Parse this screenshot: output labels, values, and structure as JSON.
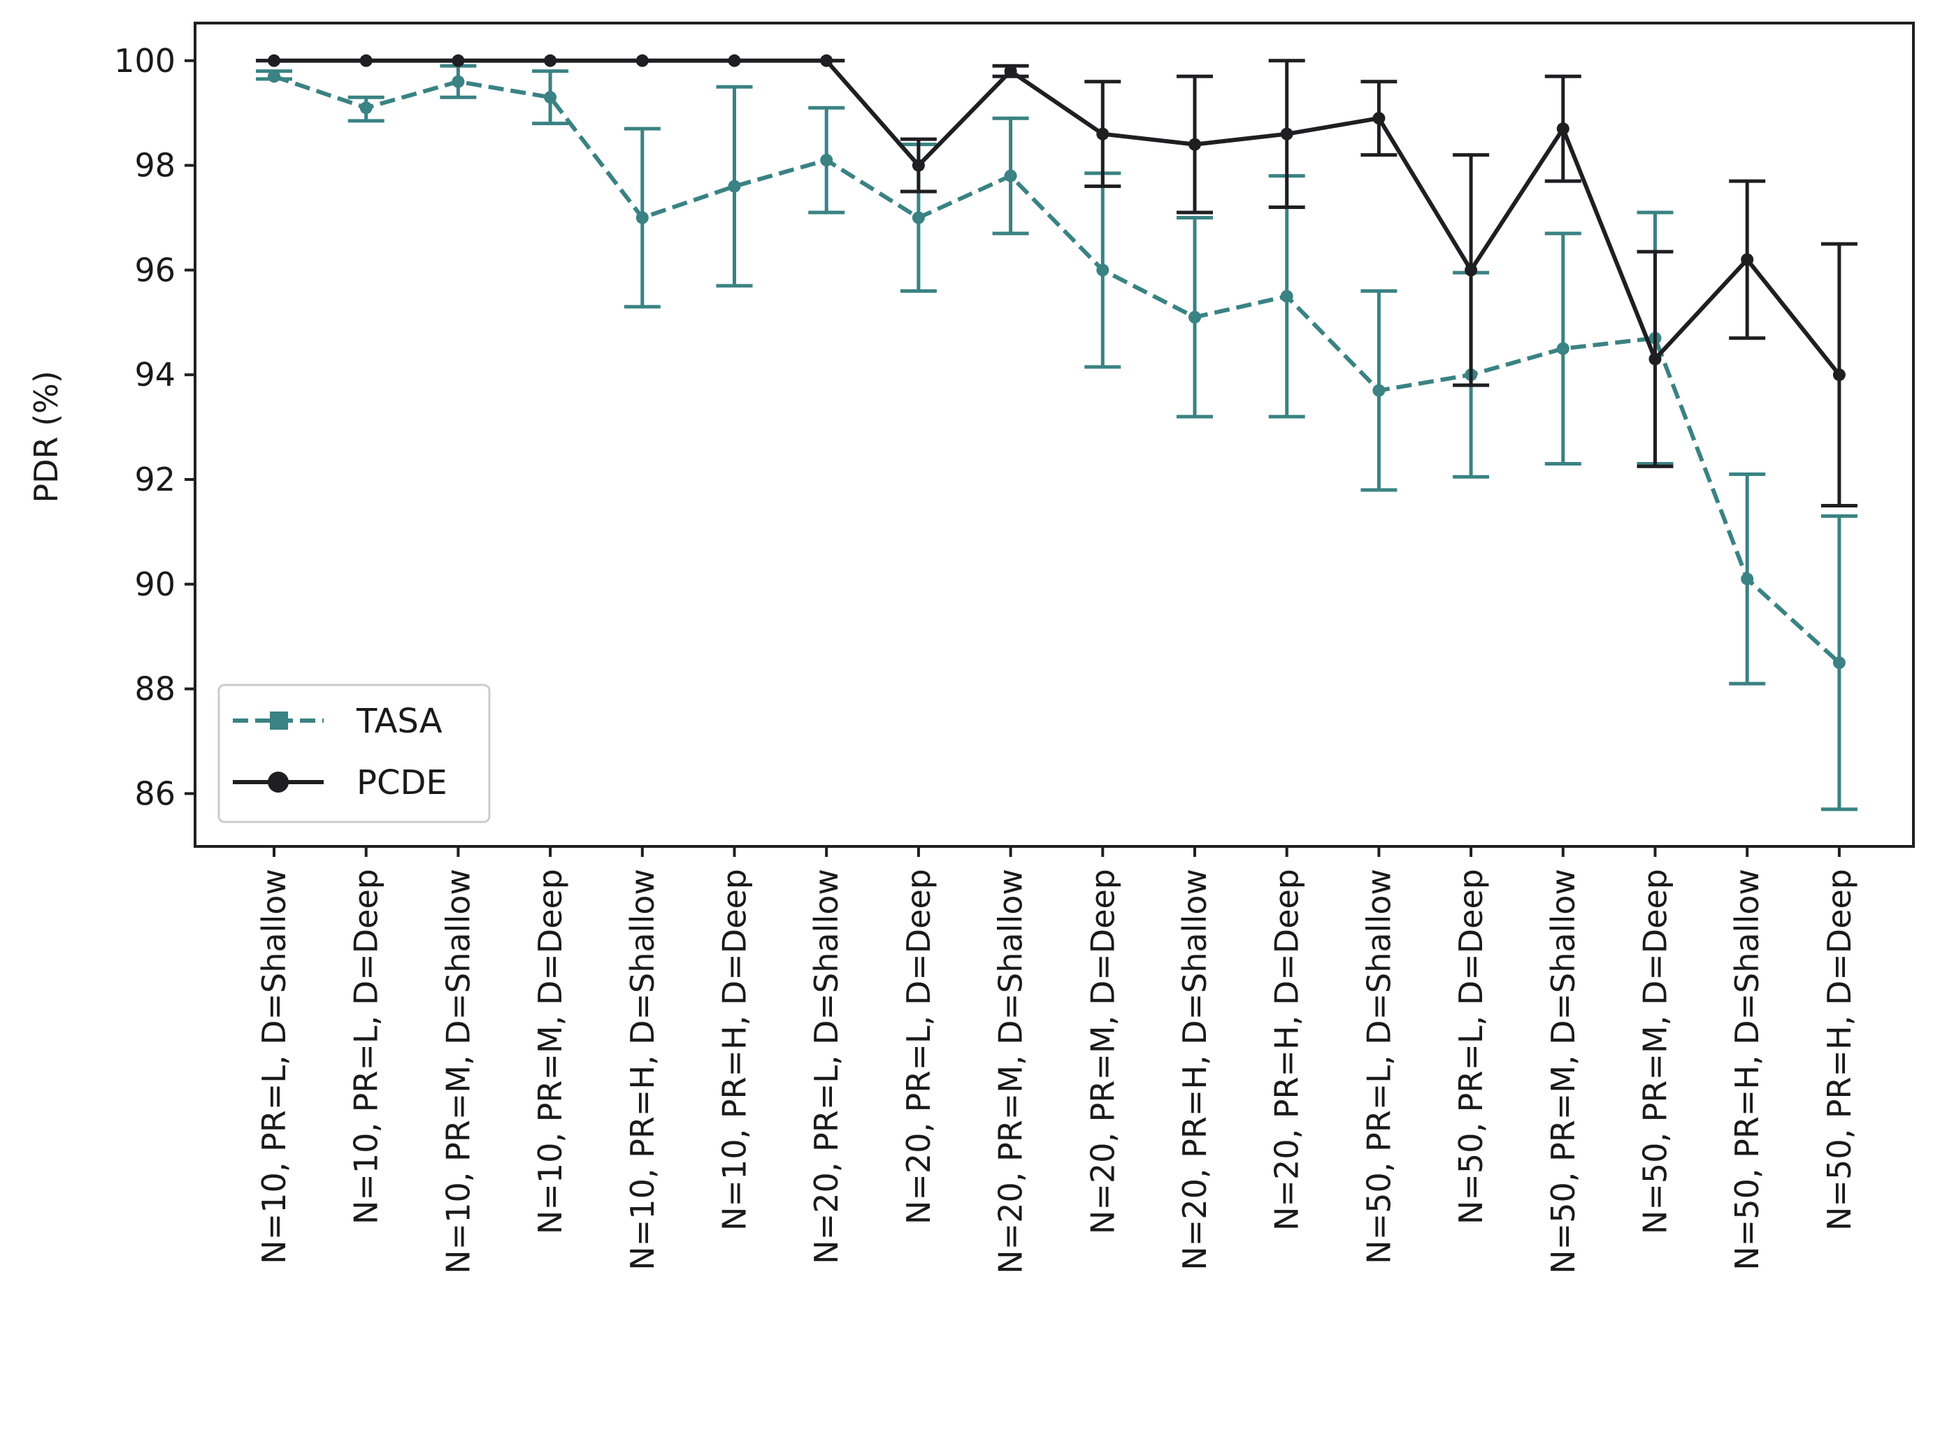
{
  "chart_data": {
    "type": "line",
    "title": "",
    "xlabel": "",
    "ylabel": "PDR (%)",
    "ylim": [
      85,
      100.7
    ],
    "yticks": [
      86,
      88,
      90,
      92,
      94,
      96,
      98,
      100
    ],
    "grid": false,
    "legend_position": "lower-left",
    "categories": [
      "N=10, PR=L, D=Shallow",
      "N=10, PR=L, D=Deep",
      "N=10, PR=M, D=Shallow",
      "N=10, PR=M, D=Deep",
      "N=10, PR=H, D=Shallow",
      "N=10, PR=H, D=Deep",
      "N=20, PR=L, D=Shallow",
      "N=20, PR=L, D=Deep",
      "N=20, PR=M, D=Shallow",
      "N=20, PR=M, D=Deep",
      "N=20, PR=H, D=Shallow",
      "N=20, PR=H, D=Deep",
      "N=50, PR=L, D=Shallow",
      "N=50, PR=L, D=Deep",
      "N=50, PR=M, D=Shallow",
      "N=50, PR=M, D=Deep",
      "N=50, PR=H, D=Shallow",
      "N=50, PR=H, D=Deep"
    ],
    "series": [
      {
        "name": "TASA",
        "color": "#3a8283",
        "line_style": "dashed",
        "marker": "square",
        "values": [
          99.7,
          99.1,
          99.6,
          99.3,
          97.0,
          97.6,
          98.1,
          97.0,
          97.8,
          96.0,
          95.1,
          95.5,
          93.7,
          94.0,
          94.5,
          94.7,
          90.1,
          88.5
        ],
        "err_lower": [
          99.65,
          98.85,
          99.3,
          98.8,
          95.3,
          95.7,
          97.1,
          95.6,
          96.7,
          94.15,
          93.2,
          93.2,
          91.8,
          92.05,
          92.3,
          92.3,
          88.1,
          85.7
        ],
        "err_upper": [
          99.8,
          99.3,
          99.9,
          99.8,
          98.7,
          99.5,
          99.1,
          98.4,
          98.9,
          97.85,
          97.0,
          97.8,
          95.6,
          95.95,
          96.7,
          97.1,
          92.1,
          91.3
        ]
      },
      {
        "name": "PCDE",
        "color": "#1f1e21",
        "line_style": "solid",
        "marker": "circle",
        "values": [
          100,
          100,
          100,
          100,
          100,
          100,
          100,
          98.0,
          99.8,
          98.6,
          98.4,
          98.6,
          98.9,
          96.0,
          98.7,
          94.3,
          96.2,
          94.0
        ],
        "err_lower": [
          100,
          100,
          100,
          100,
          100,
          100,
          100,
          97.5,
          99.7,
          97.6,
          97.1,
          97.2,
          98.2,
          93.8,
          97.7,
          92.25,
          94.7,
          91.5
        ],
        "err_upper": [
          100,
          100,
          100,
          100,
          100,
          100,
          100,
          98.5,
          99.9,
          99.6,
          99.7,
          100,
          99.6,
          98.2,
          99.7,
          96.35,
          97.7,
          96.5
        ]
      }
    ]
  }
}
